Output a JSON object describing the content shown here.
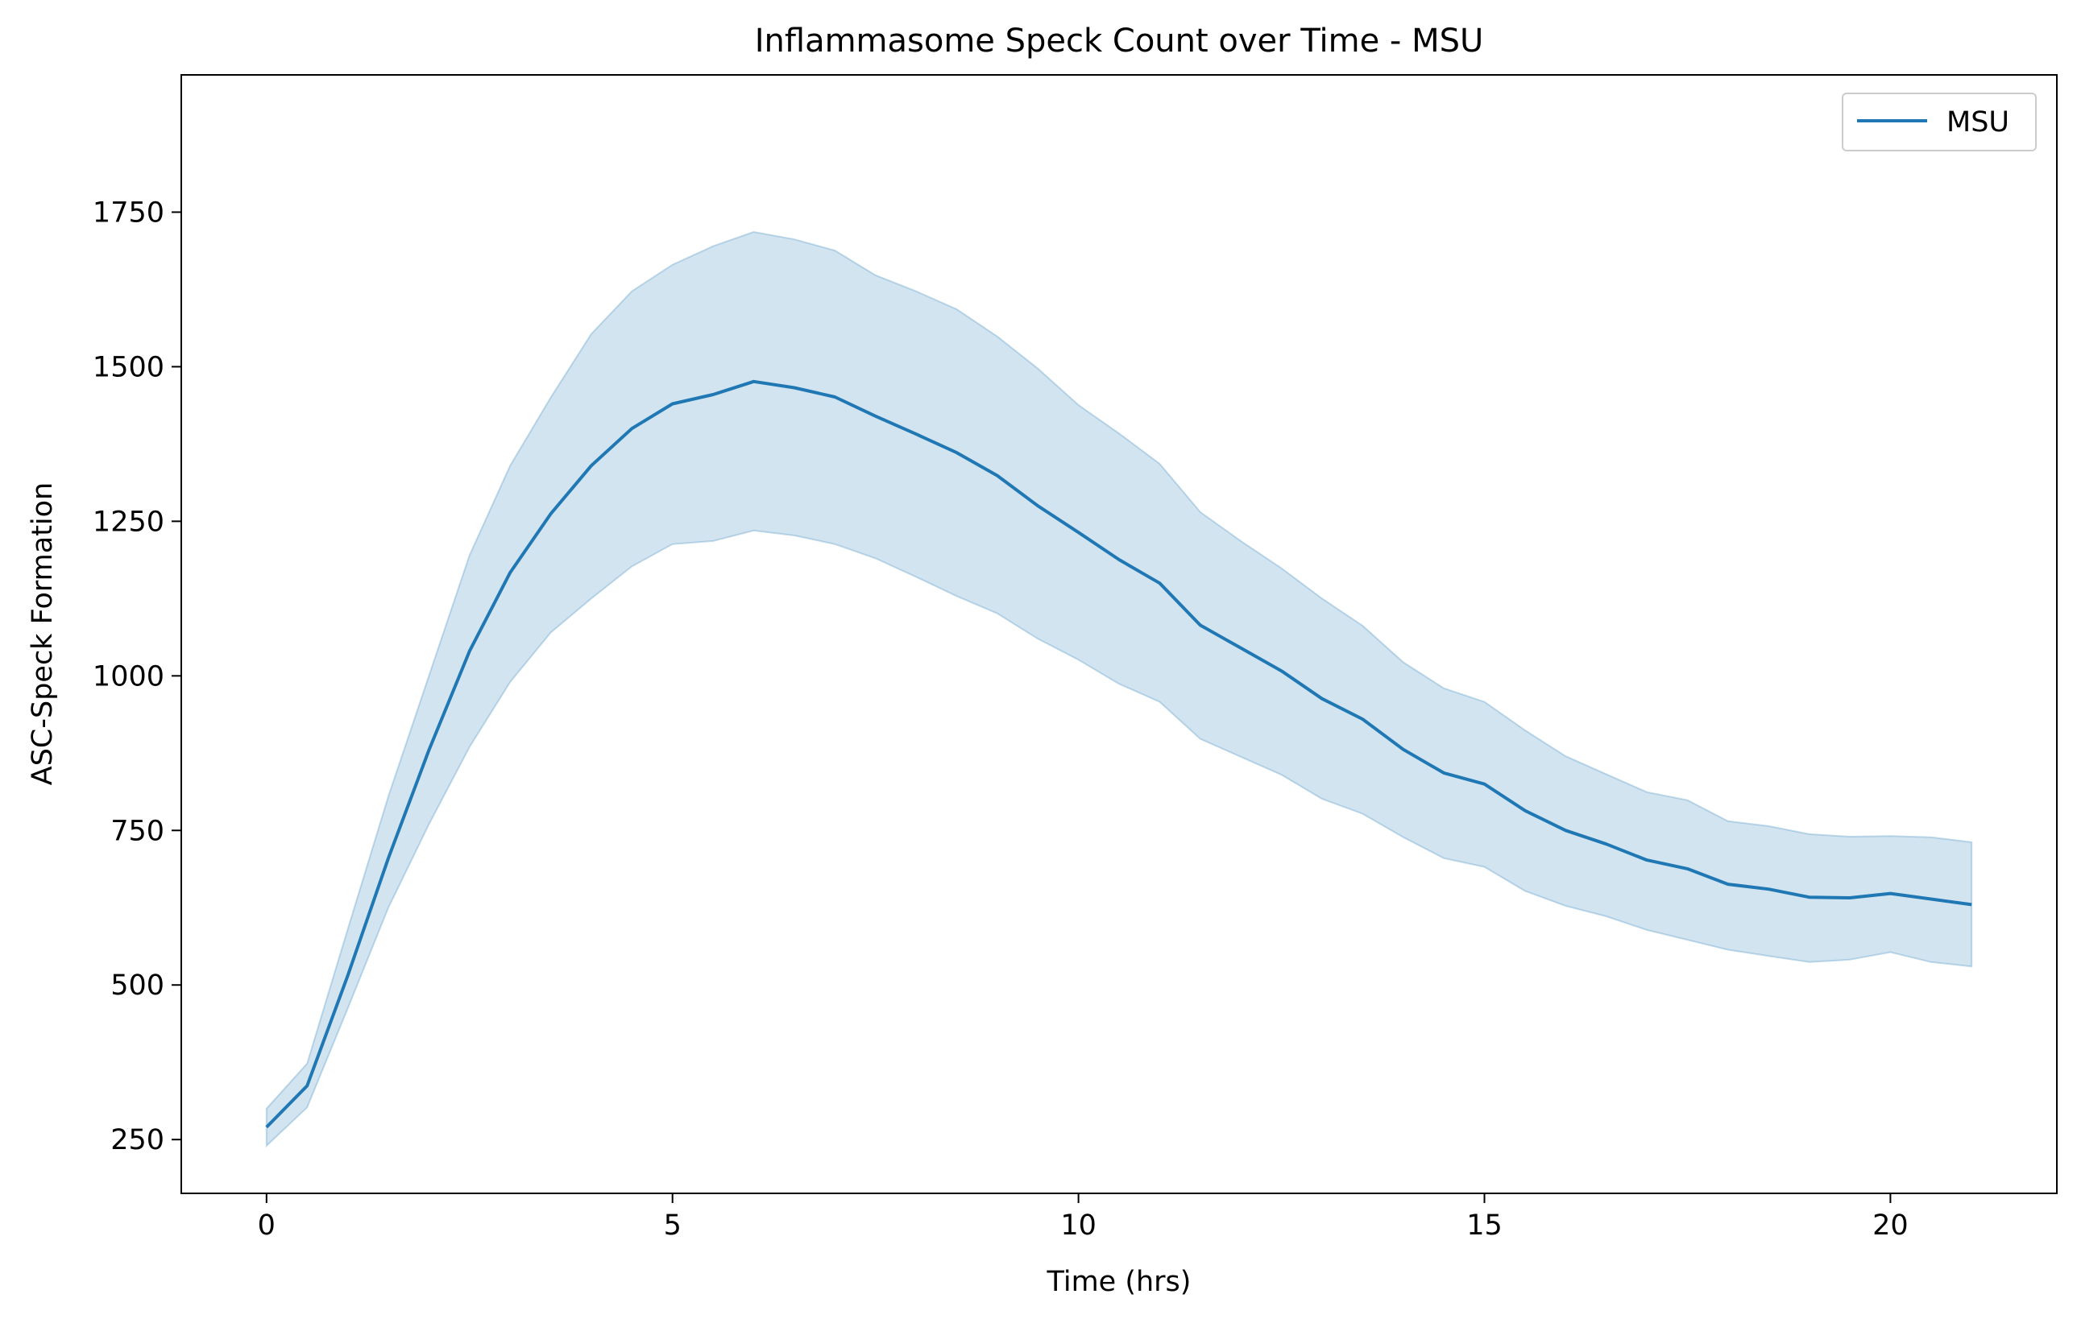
{
  "chart_data": {
    "type": "line",
    "title": "Inflammasome Speck Count over Time - MSU",
    "xlabel": "Time (hrs)",
    "ylabel": "ASC-Speck Formation",
    "xlim": [
      -1.05,
      22.05
    ],
    "ylim": [
      163,
      1972
    ],
    "xticks": [
      0,
      5,
      10,
      15,
      20
    ],
    "yticks": [
      250,
      500,
      750,
      1000,
      1250,
      1500,
      1750
    ],
    "grid": false,
    "legend": {
      "position": "top-right",
      "entries": [
        "MSU"
      ]
    },
    "colors": {
      "line": "#1f77b4",
      "band": "#1f77b4",
      "band_opacity": 0.2
    },
    "x": [
      0,
      0.5,
      1,
      1.5,
      2,
      2.5,
      3,
      3.5,
      4,
      4.5,
      5,
      5.5,
      6,
      6.5,
      7,
      7.5,
      8,
      8.5,
      9,
      9.5,
      10,
      10.5,
      11,
      11.5,
      12,
      12.5,
      13,
      13.5,
      14,
      14.5,
      15,
      15.5,
      16,
      16.5,
      17,
      17.5,
      18,
      18.5,
      19,
      19.5,
      20,
      20.5,
      21
    ],
    "series": [
      {
        "name": "MSU",
        "values": [
          270,
          337,
          515,
          705,
          880,
          1040,
          1167,
          1262,
          1340,
          1400,
          1440,
          1455,
          1476,
          1466,
          1451,
          1420,
          1391,
          1361,
          1324,
          1275,
          1232,
          1188,
          1150,
          1082,
          1045,
          1008,
          963,
          930,
          881,
          843,
          825,
          782,
          750,
          728,
          702,
          688,
          663,
          655,
          642,
          641,
          648,
          639,
          630
        ],
        "lower": [
          240,
          302,
          462,
          625,
          760,
          885,
          990,
          1070,
          1125,
          1177,
          1213,
          1218,
          1235,
          1227,
          1213,
          1190,
          1160,
          1129,
          1101,
          1060,
          1026,
          987,
          958,
          898,
          869,
          840,
          801,
          777,
          739,
          705,
          691,
          652,
          628,
          611,
          589,
          573,
          557,
          547,
          537,
          541,
          553,
          537,
          530
        ],
        "upper": [
          300,
          373,
          590,
          805,
          1000,
          1195,
          1340,
          1450,
          1553,
          1622,
          1665,
          1695,
          1718,
          1706,
          1688,
          1648,
          1622,
          1593,
          1549,
          1497,
          1438,
          1392,
          1343,
          1265,
          1218,
          1174,
          1125,
          1081,
          1022,
          980,
          958,
          912,
          870,
          841,
          812,
          799,
          765,
          757,
          744,
          740,
          741,
          739,
          731
        ]
      }
    ]
  }
}
